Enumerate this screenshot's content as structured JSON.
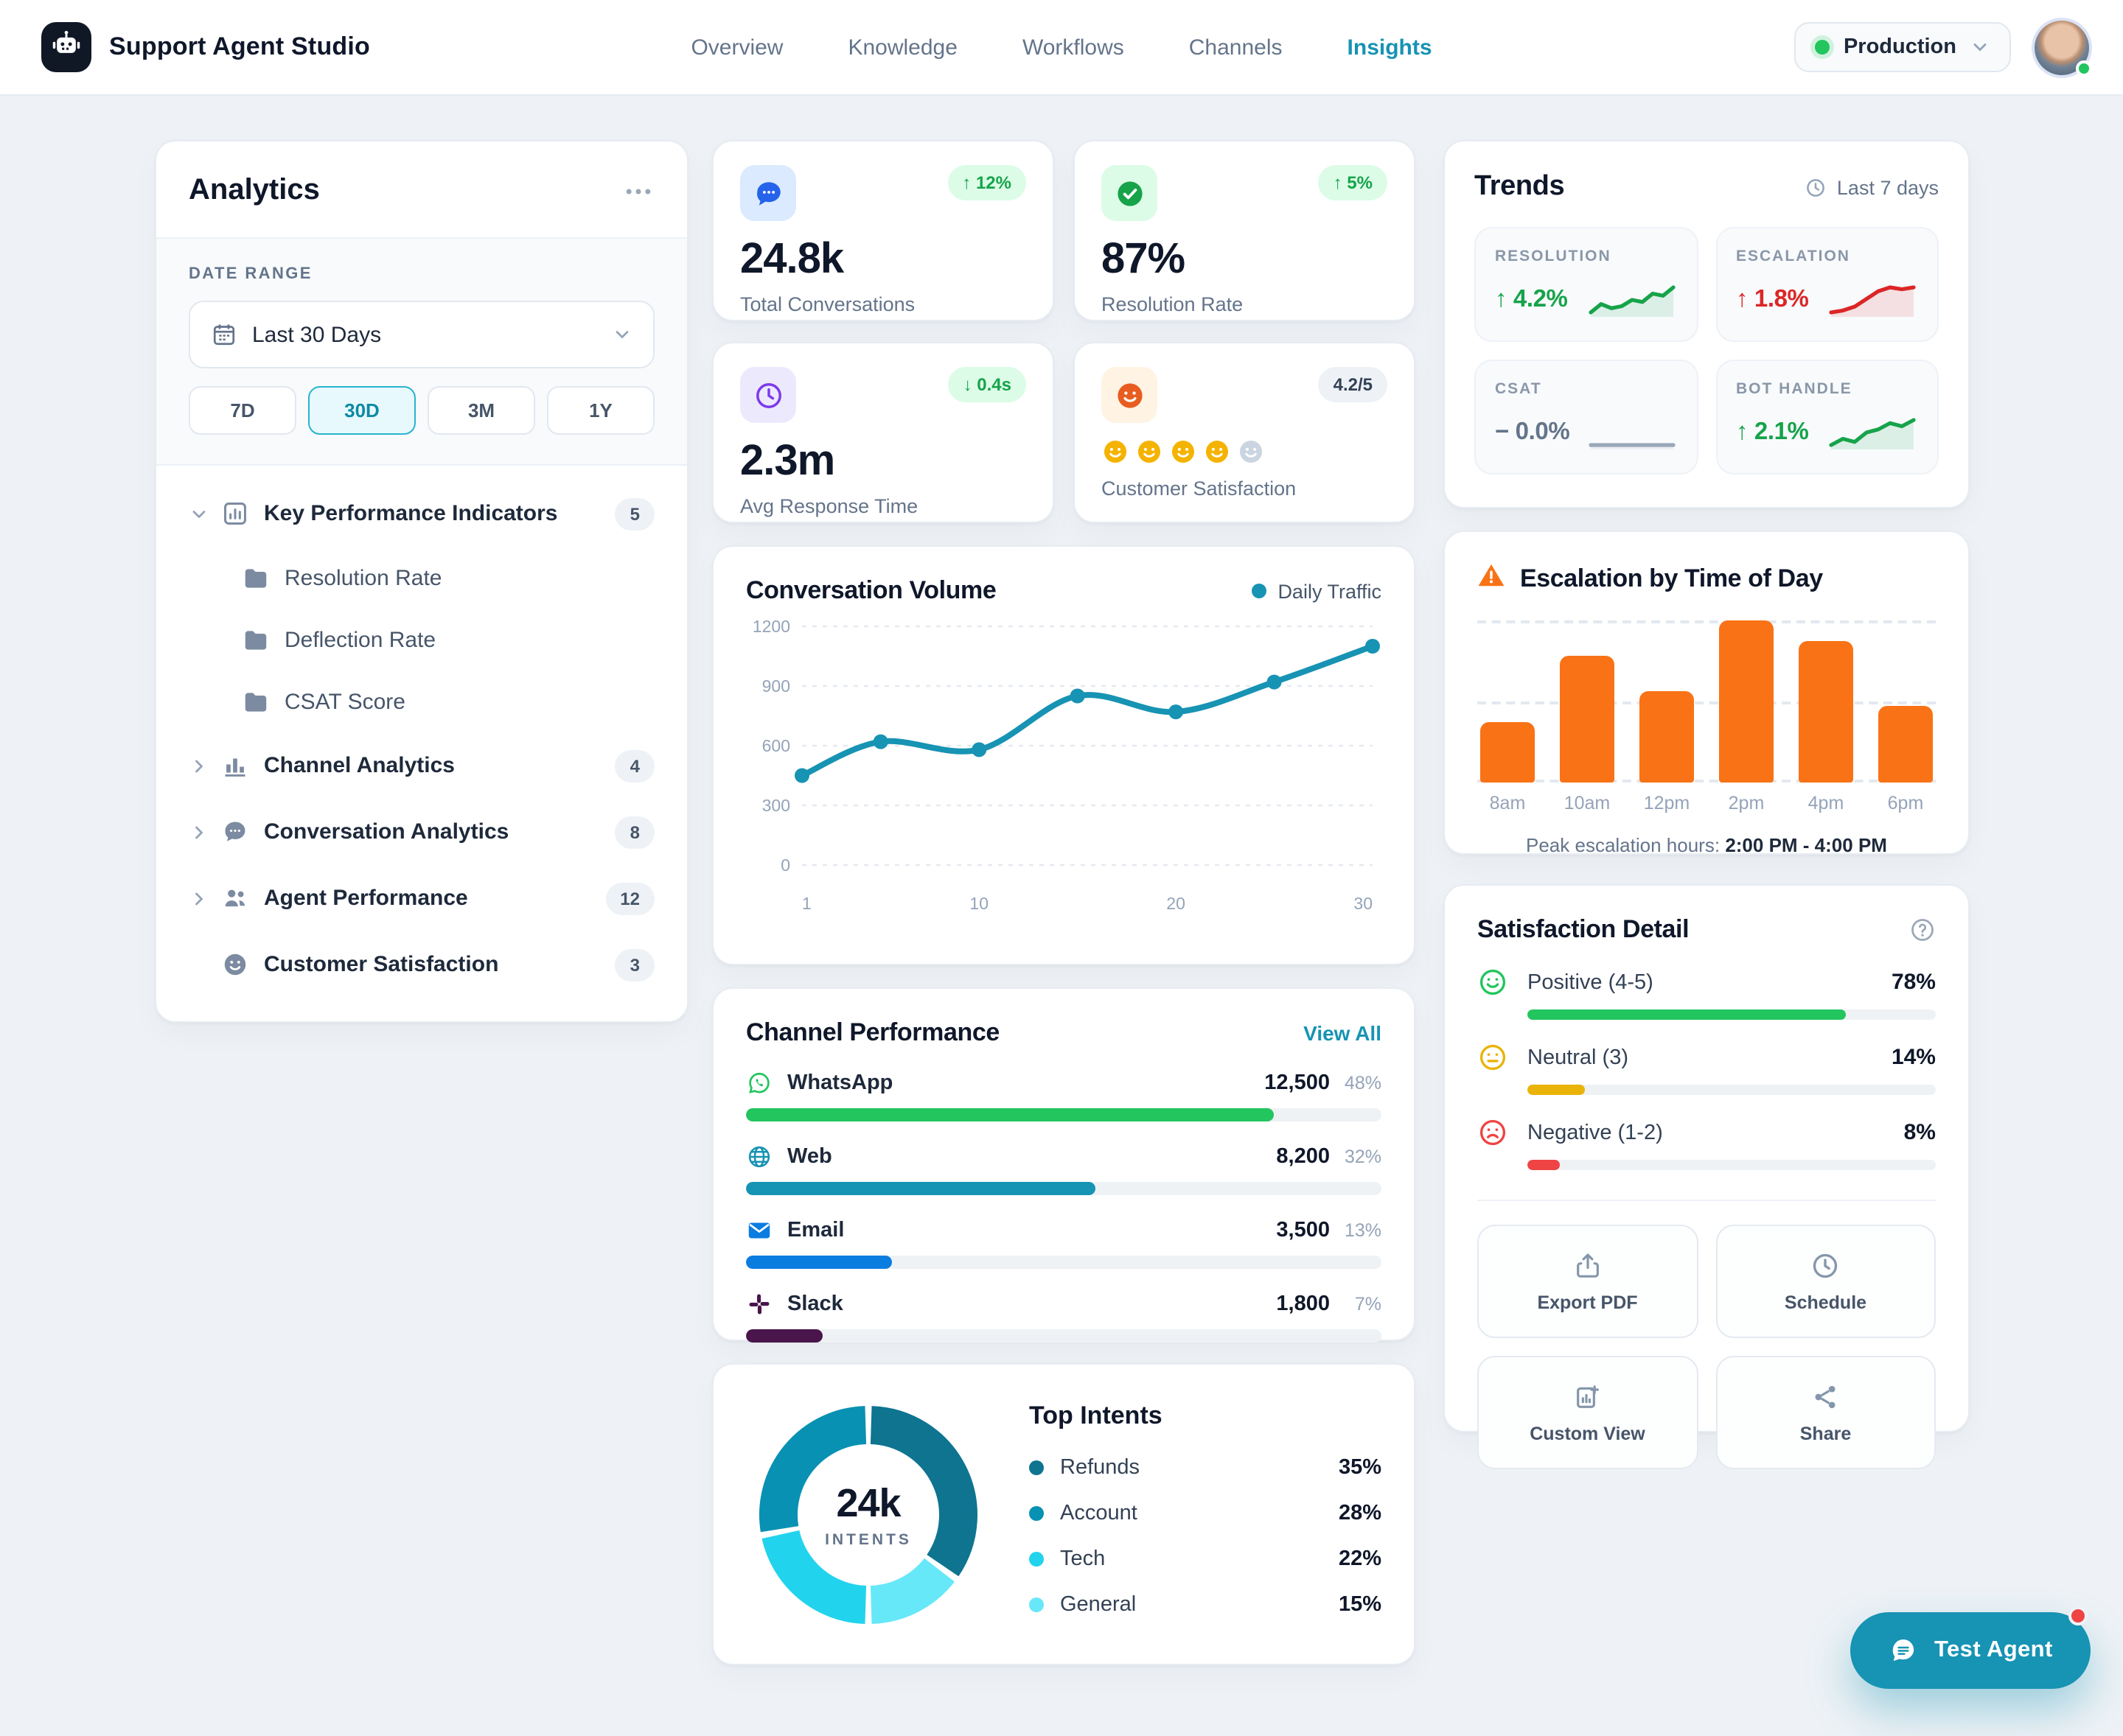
{
  "header": {
    "app_title": "Support Agent Studio",
    "nav": [
      {
        "label": "Overview",
        "active": false
      },
      {
        "label": "Knowledge",
        "active": false
      },
      {
        "label": "Workflows",
        "active": false
      },
      {
        "label": "Channels",
        "active": false
      },
      {
        "label": "Insights",
        "active": true
      }
    ],
    "environment": {
      "label": "Production",
      "status_color": "#22c55e"
    }
  },
  "sidebar": {
    "title": "Analytics",
    "date_range": {
      "label": "DATE RANGE",
      "selected": "Last 30 Days",
      "presets": [
        {
          "label": "7D",
          "active": false
        },
        {
          "label": "30D",
          "active": true
        },
        {
          "label": "3M",
          "active": false
        },
        {
          "label": "1Y",
          "active": false
        }
      ]
    },
    "tree": [
      {
        "label": "Key Performance Indicators",
        "icon": "kpi-box-icon",
        "badge": "5",
        "chevron": "down",
        "children": [
          {
            "label": "Resolution Rate",
            "icon": "folder-icon"
          },
          {
            "label": "Deflection Rate",
            "icon": "folder-icon"
          },
          {
            "label": "CSAT Score",
            "icon": "folder-icon"
          }
        ]
      },
      {
        "label": "Channel Analytics",
        "icon": "bar-chart-icon",
        "badge": "4",
        "chevron": "right",
        "children": []
      },
      {
        "label": "Conversation Analytics",
        "icon": "chat-icon",
        "badge": "8",
        "chevron": "right",
        "children": []
      },
      {
        "label": "Agent Performance",
        "icon": "users-icon",
        "badge": "12",
        "chevron": "right",
        "children": []
      },
      {
        "label": "Customer Satisfaction",
        "icon": "smiley-icon",
        "badge": "3",
        "chevron": "none",
        "children": []
      }
    ]
  },
  "kpis": [
    {
      "icon": "chat-bubble-icon",
      "icon_bg": "#dbeafe",
      "icon_color": "#2563eb",
      "badge": "↑ 12%",
      "badge_type": "positive",
      "value": "24.8k",
      "label": "Total Conversations"
    },
    {
      "icon": "check-circle-icon",
      "icon_bg": "#dcfce7",
      "icon_color": "#16a34a",
      "badge": "↑ 5%",
      "badge_type": "positive",
      "value": "87%",
      "label": "Resolution Rate"
    },
    {
      "icon": "clock-icon",
      "icon_bg": "#ece9fd",
      "icon_color": "#7c3aed",
      "badge": "↓ 0.4s",
      "badge_type": "positive",
      "value": "2.3m",
      "label": "Avg Response Time"
    },
    {
      "icon": "smiley-filled-icon",
      "icon_bg": "#fff3e4",
      "icon_color": "#e85d1f",
      "badge": "4.2/5",
      "badge_type": "neutral",
      "value": null,
      "label": "Customer Satisfaction",
      "rating": {
        "filled": 4,
        "total": 5,
        "filled_color": "#f5b301",
        "empty_color": "#cbd5e1"
      }
    }
  ],
  "chart_data": [
    {
      "id": "conversation_volume",
      "type": "line",
      "title": "Conversation Volume",
      "legend": [
        {
          "label": "Daily Traffic",
          "color": "#1793b3"
        }
      ],
      "x": [
        1,
        5,
        10,
        15,
        20,
        25,
        30
      ],
      "values": [
        450,
        620,
        580,
        850,
        770,
        920,
        1100
      ],
      "ylim": [
        0,
        1200
      ],
      "yticks": [
        0,
        300,
        600,
        900,
        1200
      ],
      "xticks": [
        1,
        10,
        20,
        30
      ],
      "grid": true,
      "line_color": "#1793b3"
    },
    {
      "id": "escalation_by_time",
      "type": "bar",
      "title": "Escalation by Time of Day",
      "categories": [
        "8am",
        "10am",
        "12pm",
        "2pm",
        "4pm",
        "6pm"
      ],
      "values": [
        37,
        78,
        56,
        100,
        87,
        47
      ],
      "ylim": [
        0,
        100
      ],
      "bar_color": "#f97316",
      "grid": true,
      "footer_label": "Peak escalation hours:",
      "footer_value": "2:00 PM - 4:00 PM"
    },
    {
      "id": "top_intents",
      "type": "pie",
      "title": "Top Intents",
      "center_value": "24k",
      "center_label": "INTENTS",
      "slices": [
        {
          "label": "Refunds",
          "pct": 35,
          "color": "#0e7490"
        },
        {
          "label": "Account",
          "pct": 28,
          "color": "#0891b2"
        },
        {
          "label": "Tech",
          "pct": 22,
          "color": "#22d3ee"
        },
        {
          "label": "General",
          "pct": 15,
          "color": "#67e8f9"
        }
      ]
    },
    {
      "id": "channel_performance",
      "type": "bar",
      "title": "Channel Performance",
      "link": "View All",
      "rows": [
        {
          "label": "WhatsApp",
          "icon": "whatsapp-icon",
          "value": "12,500",
          "pct": "48%",
          "fill": 0.83,
          "color": "#22c55e"
        },
        {
          "label": "Web",
          "icon": "globe-icon",
          "value": "8,200",
          "pct": "32%",
          "fill": 0.55,
          "color": "#1793b3"
        },
        {
          "label": "Email",
          "icon": "email-icon",
          "value": "3,500",
          "pct": "13%",
          "fill": 0.23,
          "color": "#0b7ce0"
        },
        {
          "label": "Slack",
          "icon": "slack-icon",
          "value": "1,800",
          "pct": "7%",
          "fill": 0.12,
          "color": "#4a154b"
        }
      ]
    },
    {
      "id": "trends",
      "type": "sparklines",
      "title": "Trends",
      "period": "Last 7 days",
      "tiles": [
        {
          "label": "RESOLUTION",
          "delta": "↑ 4.2%",
          "direction": "up",
          "color": "#16a34a",
          "points": [
            4,
            8,
            6,
            7,
            10,
            9,
            13,
            12,
            16
          ]
        },
        {
          "label": "ESCALATION",
          "delta": "↑ 1.8%",
          "direction": "up",
          "color": "#dc2626",
          "points": [
            3,
            4,
            6,
            10,
            14,
            16,
            15,
            16
          ]
        },
        {
          "label": "CSAT",
          "delta": "− 0.0%",
          "direction": "flat",
          "color": "#9aa7b8",
          "points": [
            9,
            9,
            9,
            9,
            9,
            9,
            9,
            9
          ]
        },
        {
          "label": "BOT HANDLE",
          "delta": "↑ 2.1%",
          "direction": "up",
          "color": "#16a34a",
          "points": [
            5,
            7,
            6,
            9,
            10,
            12,
            11,
            13
          ]
        }
      ]
    },
    {
      "id": "satisfaction_detail",
      "type": "bar",
      "title": "Satisfaction Detail",
      "rows": [
        {
          "label": "Positive (4-5)",
          "icon": "smiley-happy-icon",
          "pct": "78%",
          "fill": 0.78,
          "color": "#22c55e",
          "icon_color": "#22c55e"
        },
        {
          "label": "Neutral (3)",
          "icon": "smiley-neutral-icon",
          "pct": "14%",
          "fill": 0.14,
          "color": "#eab308",
          "icon_color": "#eab308"
        },
        {
          "label": "Negative (1-2)",
          "icon": "smiley-sad-icon",
          "pct": "8%",
          "fill": 0.08,
          "color": "#ef4444",
          "icon_color": "#ef4444"
        }
      ]
    }
  ],
  "actions": [
    {
      "label": "Export PDF",
      "icon": "export-icon"
    },
    {
      "label": "Schedule",
      "icon": "clock-icon"
    },
    {
      "label": "Custom View",
      "icon": "custom-view-icon"
    },
    {
      "label": "Share",
      "icon": "share-icon"
    }
  ],
  "test_agent": {
    "label": "Test Agent",
    "color": "#1793b3"
  }
}
